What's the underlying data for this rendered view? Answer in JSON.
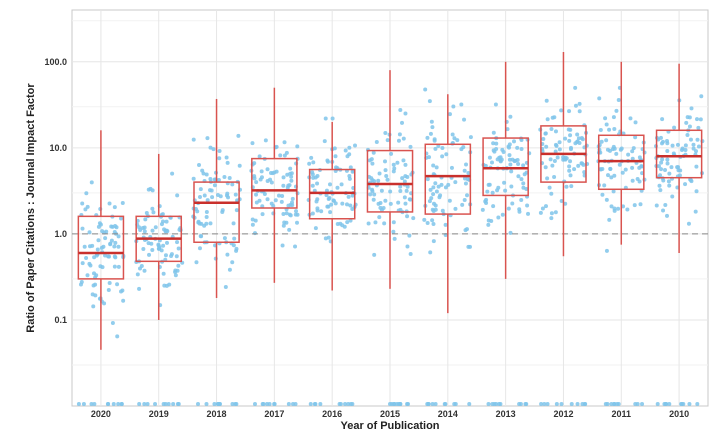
{
  "chart_data": {
    "type": "box",
    "title": "",
    "xlabel": "Year of Publication",
    "ylabel": "Ratio of Paper Citations : Journal Impact Factor",
    "y_scale": "log10",
    "ylim": [
      0.01,
      400
    ],
    "y_ticks": [
      {
        "value": 0.1,
        "label": "0.1"
      },
      {
        "value": 1,
        "label": "1.0"
      },
      {
        "value": 10,
        "label": "10.0"
      },
      {
        "value": 100,
        "label": "100.0"
      }
    ],
    "reference_line": {
      "y": 1,
      "style": "dashed"
    },
    "grid": true,
    "colors": {
      "points": "#7fc4ea",
      "box_stroke": "#d9534f",
      "median": "#c9302c",
      "reference_line": "#888888",
      "grid": "#e6e6e6",
      "panel_border": "#c8c8c8"
    },
    "categories": [
      "2020",
      "2019",
      "2018",
      "2017",
      "2016",
      "2015",
      "2014",
      "2013",
      "2012",
      "2011",
      "2010"
    ],
    "boxes": [
      {
        "min": 0.045,
        "q1": 0.3,
        "median": 0.6,
        "q3": 1.6,
        "max": 16
      },
      {
        "min": 0.1,
        "q1": 0.48,
        "median": 0.88,
        "q3": 1.6,
        "max": 8.5
      },
      {
        "min": 0.18,
        "q1": 0.8,
        "median": 2.3,
        "q3": 4.0,
        "max": 37
      },
      {
        "min": 0.27,
        "q1": 2.0,
        "median": 3.2,
        "q3": 7.5,
        "max": 50
      },
      {
        "min": 0.22,
        "q1": 1.5,
        "median": 3.0,
        "q3": 5.6,
        "max": 20
      },
      {
        "min": 0.23,
        "q1": 1.8,
        "median": 3.8,
        "q3": 9.3,
        "max": 80
      },
      {
        "min": 0.12,
        "q1": 1.7,
        "median": 4.7,
        "q3": 11,
        "max": 42
      },
      {
        "min": 0.3,
        "q1": 2.8,
        "median": 5.8,
        "q3": 13,
        "max": 100
      },
      {
        "min": 0.55,
        "q1": 4.0,
        "median": 8.5,
        "q3": 18,
        "max": 130
      },
      {
        "min": 0.75,
        "q1": 3.3,
        "median": 7.0,
        "q3": 14,
        "max": 100
      },
      {
        "min": 0.6,
        "q1": 4.5,
        "median": 8.0,
        "q3": 16,
        "max": 95
      }
    ]
  }
}
